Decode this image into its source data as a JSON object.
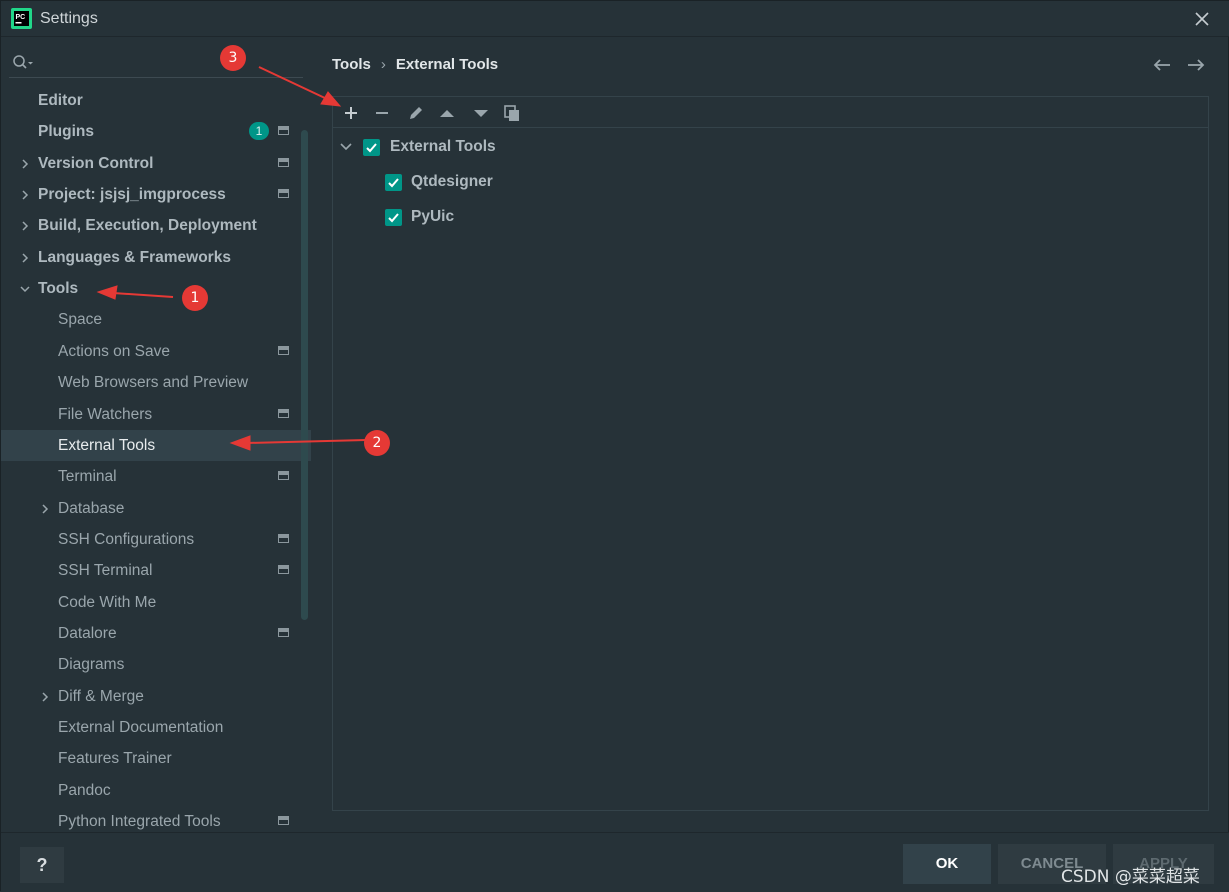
{
  "window": {
    "title": "Settings"
  },
  "sidebar": {
    "search_placeholder": "",
    "items": [
      {
        "label": "Editor",
        "level": 0,
        "expand": "none",
        "icon": false
      },
      {
        "label": "Plugins",
        "level": 0,
        "expand": "none",
        "icon": true,
        "badge": "1"
      },
      {
        "label": "Version Control",
        "level": 0,
        "expand": "collapsed",
        "icon": true
      },
      {
        "label": "Project: jsjsj_imgprocess",
        "level": 0,
        "expand": "collapsed",
        "icon": true
      },
      {
        "label": "Build, Execution, Deployment",
        "level": 0,
        "expand": "collapsed",
        "icon": false
      },
      {
        "label": "Languages & Frameworks",
        "level": 0,
        "expand": "collapsed",
        "icon": false
      },
      {
        "label": "Tools",
        "level": 0,
        "expand": "expanded",
        "icon": false
      },
      {
        "label": "Space",
        "level": 1,
        "expand": "none",
        "icon": false
      },
      {
        "label": "Actions on Save",
        "level": 1,
        "expand": "none",
        "icon": true
      },
      {
        "label": "Web Browsers and Preview",
        "level": 1,
        "expand": "none",
        "icon": false
      },
      {
        "label": "File Watchers",
        "level": 1,
        "expand": "none",
        "icon": true
      },
      {
        "label": "External Tools",
        "level": 1,
        "expand": "none",
        "icon": false,
        "selected": true
      },
      {
        "label": "Terminal",
        "level": 1,
        "expand": "none",
        "icon": true
      },
      {
        "label": "Database",
        "level": 1,
        "expand": "collapsed",
        "icon": false
      },
      {
        "label": "SSH Configurations",
        "level": 1,
        "expand": "none",
        "icon": true
      },
      {
        "label": "SSH Terminal",
        "level": 1,
        "expand": "none",
        "icon": true
      },
      {
        "label": "Code With Me",
        "level": 1,
        "expand": "none",
        "icon": false
      },
      {
        "label": "Datalore",
        "level": 1,
        "expand": "none",
        "icon": true
      },
      {
        "label": "Diagrams",
        "level": 1,
        "expand": "none",
        "icon": false
      },
      {
        "label": "Diff & Merge",
        "level": 1,
        "expand": "collapsed",
        "icon": false
      },
      {
        "label": "External Documentation",
        "level": 1,
        "expand": "none",
        "icon": false
      },
      {
        "label": "Features Trainer",
        "level": 1,
        "expand": "none",
        "icon": false
      },
      {
        "label": "Pandoc",
        "level": 1,
        "expand": "none",
        "icon": false
      },
      {
        "label": "Python Integrated Tools",
        "level": 1,
        "expand": "none",
        "icon": true
      }
    ]
  },
  "breadcrumb": {
    "parent": "Tools",
    "separator": "›",
    "current": "External Tools"
  },
  "toolbar": {
    "buttons": [
      "add-icon",
      "remove-icon",
      "edit-icon",
      "move-up-icon",
      "move-down-icon",
      "copy-icon"
    ]
  },
  "tree": {
    "group": {
      "label": "External Tools",
      "checked": true
    },
    "tools": [
      {
        "label": "Qtdesigner",
        "checked": true
      },
      {
        "label": "PyUic",
        "checked": true
      }
    ]
  },
  "footer": {
    "help_label": "?",
    "ok_label": "OK",
    "cancel_label": "CANCEL",
    "apply_label": "APPLY",
    "watermark": "CSDN @菜菜超菜"
  },
  "annotations": [
    "1",
    "2",
    "3"
  ],
  "colors": {
    "accent": "#009688",
    "background": "#263238",
    "selection": "#32424A",
    "annotation": "#E53935"
  }
}
